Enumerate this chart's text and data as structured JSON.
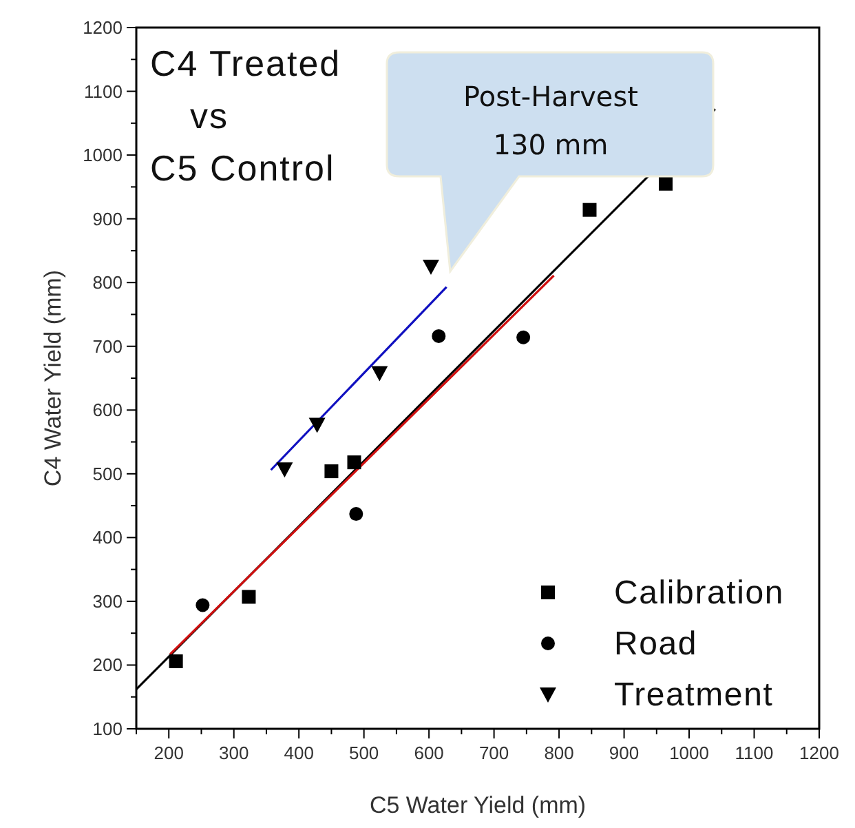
{
  "chart_data": {
    "type": "scatter",
    "title": "C4 Treated\nvs\nC5 Control",
    "xlabel": "C5 Water Yield (mm)",
    "ylabel": "C4 Water Yield (mm)",
    "annotations": [
      "Post-Harvest\n130 mm"
    ],
    "xlim": [
      150,
      1200
    ],
    "ylim": [
      100,
      1200
    ],
    "xticks": [
      {
        "value": 150,
        "label": null
      },
      200,
      {
        "value": 250,
        "label": null
      },
      300,
      {
        "value": 350,
        "label": null
      },
      400,
      {
        "value": 450,
        "label": null
      },
      500,
      {
        "value": 550,
        "label": null
      },
      600,
      {
        "value": 650,
        "label": null
      },
      700,
      {
        "value": 750,
        "label": null
      },
      800,
      {
        "value": 850,
        "label": null
      },
      900,
      {
        "value": 950,
        "label": null
      },
      1000,
      {
        "value": 1050,
        "label": null
      },
      1100,
      {
        "value": 1150,
        "label": null
      },
      1200
    ],
    "yticks": [
      100,
      {
        "value": 150,
        "label": null
      },
      200,
      {
        "value": 250,
        "label": null
      },
      300,
      {
        "value": 350,
        "label": null
      },
      400,
      {
        "value": 450,
        "label": null
      },
      500,
      {
        "value": 550,
        "label": null
      },
      600,
      {
        "value": 650,
        "label": null
      },
      700,
      {
        "value": 750,
        "label": null
      },
      800,
      {
        "value": 850,
        "label": null
      },
      900,
      {
        "value": 950,
        "label": null
      },
      1000,
      {
        "value": 1050,
        "label": null
      },
      1100,
      {
        "value": 1150,
        "label": null
      },
      1200
    ],
    "grid": false,
    "legend": "bottom right",
    "series": [
      {
        "type": "line",
        "color": "#000000",
        "x": [
          150,
          1040
        ],
        "values": [
          162,
          1072
        ],
        "line_style": "solid"
      },
      {
        "type": "line",
        "color": "#d01010",
        "x": [
          202,
          792
        ],
        "values": [
          217,
          811
        ],
        "line_style": "solid"
      },
      {
        "type": "line",
        "color": "#1010c0",
        "x": [
          357,
          627
        ],
        "values": [
          506,
          793
        ],
        "line_style": "solid"
      },
      {
        "name": "Calibration",
        "type": "scatter",
        "color": "#000000",
        "marker": "square",
        "x": [
          211,
          323,
          450,
          485,
          847,
          964
        ],
        "values": [
          206,
          307,
          504,
          518,
          914,
          955
        ]
      },
      {
        "name": "Road",
        "type": "scatter",
        "color": "#000000",
        "marker": "circle",
        "x": [
          252,
          488,
          615,
          745
        ],
        "values": [
          294,
          437,
          716,
          714
        ]
      },
      {
        "name": "Treatment",
        "type": "scatter",
        "color": "#000000",
        "marker": "triangle",
        "x": [
          378,
          428,
          524,
          603
        ],
        "values": [
          507,
          577,
          658,
          825
        ]
      }
    ]
  }
}
